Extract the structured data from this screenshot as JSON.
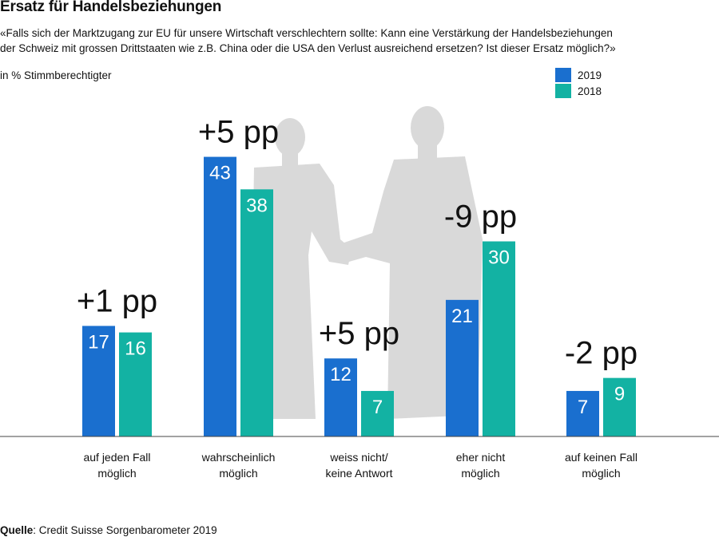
{
  "title": "Ersatz für Handelsbeziehungen",
  "question_line1": "«Falls sich der Marktzugang zur EU für unsere Wirtschaft verschlechtern sollte: Kann eine Verstärkung der Handelsbeziehungen",
  "question_line2": "der Schweiz mit grossen Drittstaaten wie z.B. China oder die USA den Verlust ausreichend ersetzen? Ist dieser Ersatz möglich?»",
  "unit_label": "in % Stimmberechtigter",
  "source_label": "Quelle",
  "source_text": ": Credit Suisse Sorgenbarometer 2019",
  "colors": {
    "series_2019": "#1a6fcf",
    "series_2018": "#13b2a3",
    "silhouette": "#d9d9d9"
  },
  "chart_data": {
    "type": "bar",
    "categories": [
      [
        "auf jeden Fall",
        "möglich"
      ],
      [
        "wahrscheinlich",
        "möglich"
      ],
      [
        "weiss nicht/",
        "keine Antwort"
      ],
      [
        "eher nicht",
        "möglich"
      ],
      [
        "auf keinen Fall",
        "möglich"
      ]
    ],
    "series": [
      {
        "name": "2019",
        "values": [
          17,
          43,
          12,
          21,
          7
        ]
      },
      {
        "name": "2018",
        "values": [
          16,
          38,
          7,
          30,
          9
        ]
      }
    ],
    "changes": [
      "+1 pp",
      "+5 pp",
      "+5 pp",
      "-9 pp",
      "-2 pp"
    ],
    "ylim": [
      0,
      50
    ],
    "title": "Ersatz für Handelsbeziehungen",
    "ylabel": "in % Stimmberechtigter",
    "xlabel": ""
  }
}
